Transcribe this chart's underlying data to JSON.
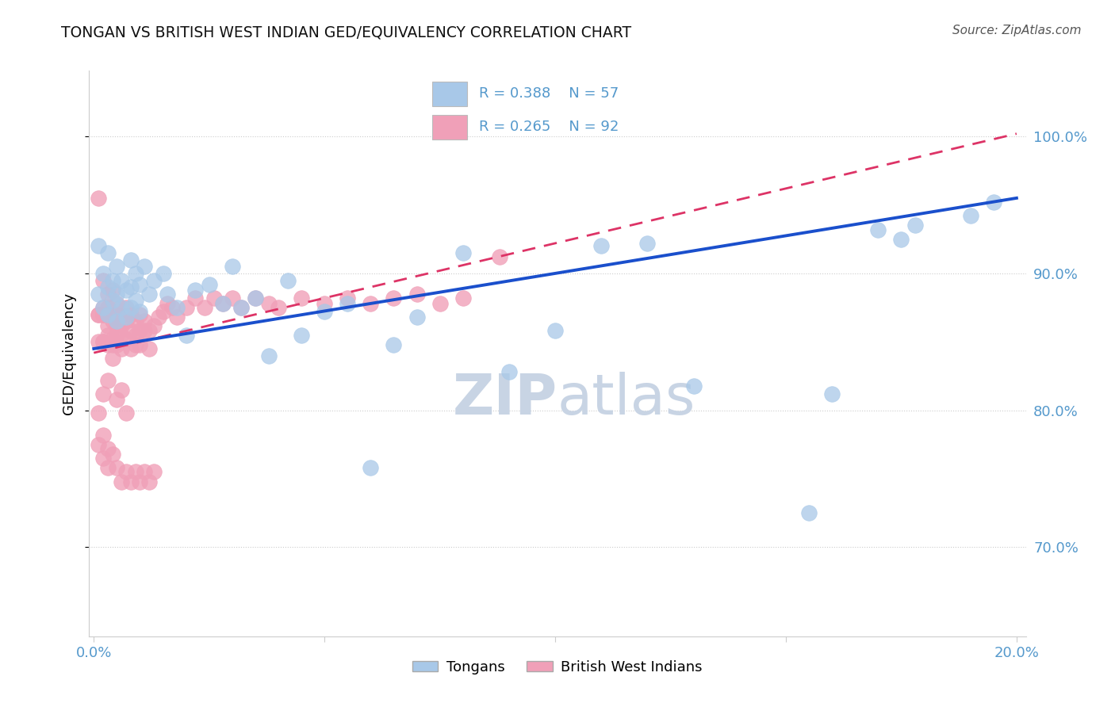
{
  "title": "TONGAN VS BRITISH WEST INDIAN GED/EQUIVALENCY CORRELATION CHART",
  "source": "Source: ZipAtlas.com",
  "ylabel": "GED/Equivalency",
  "xlim": [
    -0.001,
    0.202
  ],
  "ylim": [
    0.635,
    1.048
  ],
  "ytick_positions": [
    0.7,
    0.8,
    0.9,
    1.0
  ],
  "ytick_labels": [
    "70.0%",
    "80.0%",
    "90.0%",
    "100.0%"
  ],
  "xtick_positions": [
    0.0,
    0.05,
    0.1,
    0.15,
    0.2
  ],
  "xtick_show": [
    "0.0%",
    "",
    "",
    "",
    "20.0%"
  ],
  "legend_blue_r": "R = 0.388",
  "legend_blue_n": "N = 57",
  "legend_pink_r": "R = 0.265",
  "legend_pink_n": "N = 92",
  "legend_blue_label": "Tongans",
  "legend_pink_label": "British West Indians",
  "blue_scatter_color": "#a8c8e8",
  "pink_scatter_color": "#f0a0b8",
  "blue_line_color": "#1a4fcc",
  "pink_line_color": "#dd3366",
  "grid_color": "#cccccc",
  "axis_label_color": "#5599cc",
  "watermark_zip_color": "#c8d4e4",
  "watermark_atlas_color": "#c8d4e4",
  "tongan_x": [
    0.001,
    0.001,
    0.002,
    0.002,
    0.003,
    0.003,
    0.003,
    0.004,
    0.004,
    0.005,
    0.005,
    0.005,
    0.006,
    0.006,
    0.007,
    0.007,
    0.008,
    0.008,
    0.008,
    0.009,
    0.009,
    0.01,
    0.01,
    0.011,
    0.012,
    0.013,
    0.015,
    0.016,
    0.018,
    0.02,
    0.022,
    0.025,
    0.028,
    0.03,
    0.032,
    0.035,
    0.038,
    0.042,
    0.045,
    0.05,
    0.055,
    0.06,
    0.065,
    0.07,
    0.08,
    0.09,
    0.1,
    0.11,
    0.12,
    0.13,
    0.155,
    0.16,
    0.17,
    0.175,
    0.178,
    0.19,
    0.195
  ],
  "tongan_y": [
    0.885,
    0.92,
    0.875,
    0.9,
    0.87,
    0.89,
    0.915,
    0.88,
    0.895,
    0.865,
    0.885,
    0.905,
    0.875,
    0.895,
    0.868,
    0.888,
    0.875,
    0.89,
    0.91,
    0.88,
    0.9,
    0.872,
    0.892,
    0.905,
    0.885,
    0.895,
    0.9,
    0.885,
    0.875,
    0.855,
    0.888,
    0.892,
    0.878,
    0.905,
    0.875,
    0.882,
    0.84,
    0.895,
    0.855,
    0.872,
    0.878,
    0.758,
    0.848,
    0.868,
    0.915,
    0.828,
    0.858,
    0.92,
    0.922,
    0.818,
    0.725,
    0.812,
    0.932,
    0.925,
    0.935,
    0.942,
    0.952
  ],
  "bwi_x": [
    0.001,
    0.001,
    0.001,
    0.001,
    0.002,
    0.002,
    0.002,
    0.002,
    0.002,
    0.002,
    0.003,
    0.003,
    0.003,
    0.003,
    0.003,
    0.004,
    0.004,
    0.004,
    0.004,
    0.004,
    0.005,
    0.005,
    0.005,
    0.005,
    0.005,
    0.006,
    0.006,
    0.006,
    0.006,
    0.007,
    0.007,
    0.007,
    0.008,
    0.008,
    0.008,
    0.009,
    0.009,
    0.009,
    0.01,
    0.01,
    0.01,
    0.011,
    0.011,
    0.012,
    0.012,
    0.013,
    0.014,
    0.015,
    0.016,
    0.017,
    0.018,
    0.02,
    0.022,
    0.024,
    0.026,
    0.028,
    0.03,
    0.032,
    0.035,
    0.038,
    0.04,
    0.045,
    0.05,
    0.055,
    0.06,
    0.065,
    0.07,
    0.075,
    0.08,
    0.088,
    0.001,
    0.001,
    0.002,
    0.002,
    0.003,
    0.003,
    0.004,
    0.005,
    0.006,
    0.007,
    0.008,
    0.009,
    0.01,
    0.011,
    0.012,
    0.013,
    0.002,
    0.003,
    0.004,
    0.005,
    0.006,
    0.007
  ],
  "bwi_y": [
    0.955,
    0.87,
    0.87,
    0.85,
    0.87,
    0.85,
    0.875,
    0.895,
    0.87,
    0.85,
    0.855,
    0.875,
    0.862,
    0.848,
    0.885,
    0.852,
    0.87,
    0.888,
    0.865,
    0.848,
    0.855,
    0.87,
    0.878,
    0.862,
    0.848,
    0.855,
    0.87,
    0.862,
    0.845,
    0.852,
    0.865,
    0.875,
    0.858,
    0.87,
    0.845,
    0.855,
    0.865,
    0.848,
    0.858,
    0.87,
    0.848,
    0.858,
    0.865,
    0.858,
    0.845,
    0.862,
    0.868,
    0.872,
    0.878,
    0.875,
    0.868,
    0.875,
    0.882,
    0.875,
    0.882,
    0.878,
    0.882,
    0.875,
    0.882,
    0.878,
    0.875,
    0.882,
    0.878,
    0.882,
    0.878,
    0.882,
    0.885,
    0.878,
    0.882,
    0.912,
    0.798,
    0.775,
    0.782,
    0.765,
    0.772,
    0.758,
    0.768,
    0.758,
    0.748,
    0.755,
    0.748,
    0.755,
    0.748,
    0.755,
    0.748,
    0.755,
    0.812,
    0.822,
    0.838,
    0.808,
    0.815,
    0.798
  ],
  "blue_intercept": 0.845,
  "blue_slope": 0.55,
  "pink_intercept": 0.842,
  "pink_slope": 0.8
}
